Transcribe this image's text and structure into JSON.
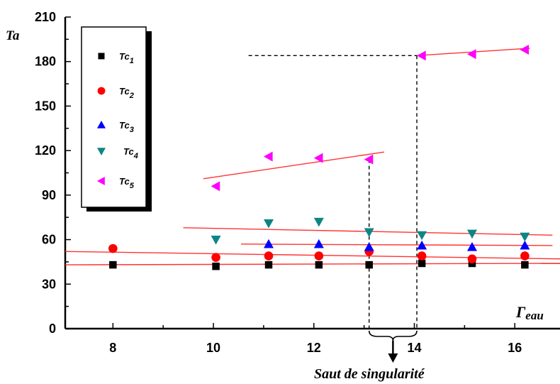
{
  "chart_data": {
    "type": "scatter",
    "xlabel_main": "Γ",
    "xlabel_sub": "eau",
    "ylabel": "Ta",
    "xlim": [
      7.05,
      16.9
    ],
    "ylim": [
      0,
      210
    ],
    "x_ticks": [
      8,
      10,
      12,
      14,
      16
    ],
    "y_ticks": [
      0,
      30,
      60,
      90,
      120,
      150,
      180,
      210
    ],
    "grid": false,
    "legend_position": "top-left",
    "series": [
      {
        "name_main": "Tc",
        "name_sub": "1",
        "marker": "square",
        "color": "#000000",
        "x": [
          8.0,
          10.05,
          11.1,
          12.1,
          13.1,
          14.15,
          15.15,
          16.2
        ],
        "y": [
          43,
          42,
          43,
          43,
          43,
          44,
          44,
          43
        ]
      },
      {
        "name_main": "Tc",
        "name_sub": "2",
        "marker": "circle",
        "color": "#ff0000",
        "x": [
          8.0,
          10.05,
          11.1,
          12.1,
          13.1,
          14.15,
          15.15,
          16.2
        ],
        "y": [
          54,
          48,
          49,
          49,
          52,
          49,
          47,
          49
        ]
      },
      {
        "name_main": "Tc",
        "name_sub": "3",
        "marker": "triangle-up",
        "color": "#0000ff",
        "x": [
          11.1,
          12.1,
          13.1,
          14.15,
          15.15,
          16.2
        ],
        "y": [
          57,
          57,
          55,
          56,
          55,
          56
        ]
      },
      {
        "name_main": "Tc",
        "name_sub": "4",
        "marker": "triangle-down",
        "color": "#0e8585",
        "x": [
          10.05,
          11.1,
          12.1,
          13.1,
          14.15,
          15.15,
          16.2
        ],
        "y": [
          60,
          71,
          72,
          65,
          63,
          64,
          62
        ]
      },
      {
        "name_main": "Tc",
        "name_sub": "5",
        "marker": "triangle-left",
        "color": "#ff00ff",
        "x": [
          10.05,
          11.1,
          12.1,
          13.1,
          14.15,
          15.15,
          16.2
        ],
        "y": [
          96,
          116,
          115,
          114,
          184,
          185,
          188
        ]
      }
    ],
    "fit_lines": [
      {
        "color": "#ff3333",
        "x": [
          7.05,
          16.9
        ],
        "y": [
          43,
          44
        ]
      },
      {
        "color": "#ff3333",
        "x": [
          7.05,
          16.9
        ],
        "y": [
          52,
          47
        ]
      },
      {
        "color": "#ff3333",
        "x": [
          10.55,
          16.75
        ],
        "y": [
          57,
          56
        ]
      },
      {
        "color": "#ff3333",
        "x": [
          9.4,
          16.75
        ],
        "y": [
          68,
          63
        ]
      },
      {
        "color": "#ff3333",
        "x": [
          9.8,
          13.4
        ],
        "y": [
          101,
          119
        ]
      },
      {
        "color": "#ff3333",
        "x": [
          14.05,
          16.3
        ],
        "y": [
          184,
          189
        ]
      }
    ],
    "guides": [
      {
        "x": [
          10.7,
          14.05
        ],
        "y": [
          184,
          184
        ]
      },
      {
        "x": [
          14.05,
          14.05
        ],
        "y": [
          184,
          0
        ]
      },
      {
        "x": [
          13.1,
          13.1
        ],
        "y": [
          114,
          0
        ]
      }
    ],
    "annotation": {
      "text": "Saut de singularité",
      "x_from": 13.1,
      "x_to": 14.05
    }
  }
}
